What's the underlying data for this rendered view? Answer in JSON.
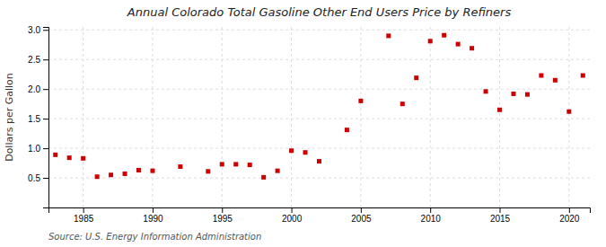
{
  "chart_data": {
    "type": "scatter",
    "title": "Annual Colorado Total Gasoline Other End Users Price by Refiners",
    "y_label": "Dollars per Gallon",
    "annotation": "Source: U.S. Energy Information Administration",
    "color": "#cc0000",
    "marker": "square",
    "grid": true,
    "xlim": [
      1982.5,
      2021.5
    ],
    "ylim": [
      0.0,
      3.05
    ],
    "xticks": [
      1985,
      1990,
      1995,
      2000,
      2005,
      2010,
      2015,
      2020
    ],
    "yticks": [
      0.5,
      {
        "value": 1.0,
        "label": "1.0"
      },
      1.5,
      {
        "value": 2.0,
        "label": "2.0"
      },
      2.5,
      {
        "value": 3.0,
        "label": "3.0"
      }
    ],
    "x": [
      1983,
      1984,
      1985,
      1986,
      1987,
      1988,
      1989,
      1990,
      1992,
      1994,
      1995,
      1996,
      1997,
      1998,
      1999,
      2000,
      2001,
      2002,
      2004,
      2005,
      2007,
      2008,
      2009,
      2010,
      2011,
      2012,
      2013,
      2014,
      2015,
      2016,
      2017,
      2018,
      2019,
      2020,
      2021
    ],
    "values": [
      0.89,
      0.84,
      0.83,
      0.52,
      0.55,
      0.57,
      0.63,
      0.62,
      0.69,
      0.61,
      0.73,
      0.73,
      0.72,
      0.51,
      0.62,
      0.96,
      0.93,
      0.78,
      1.31,
      1.8,
      2.9,
      1.75,
      2.19,
      2.81,
      2.91,
      2.76,
      2.69,
      1.96,
      1.65,
      1.92,
      1.91,
      2.23,
      2.15,
      1.62,
      2.23
    ]
  }
}
